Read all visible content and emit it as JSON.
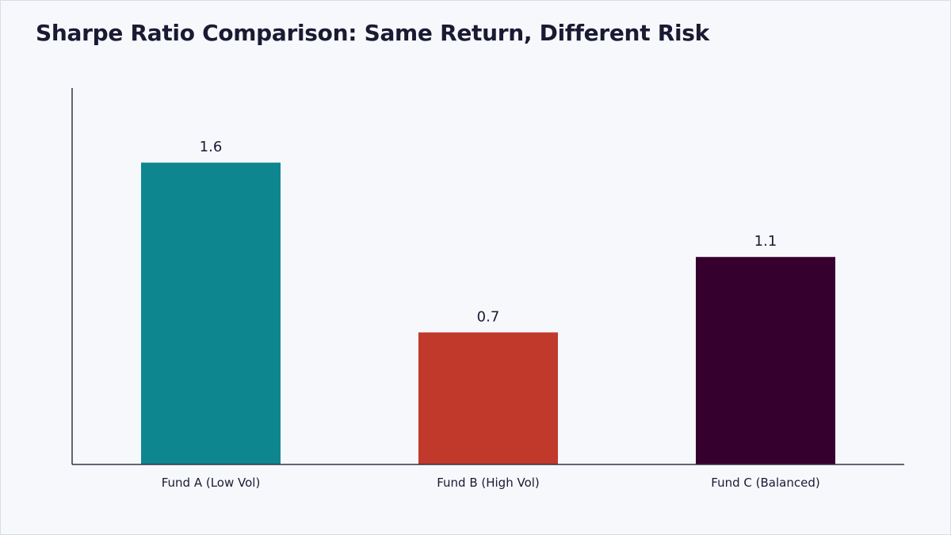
{
  "chart_data": {
    "type": "bar",
    "title": "Sharpe Ratio Comparison: Same Return, Different Risk",
    "xlabel": "",
    "ylabel": "",
    "categories": [
      "Fund A (Low Vol)",
      "Fund B (High Vol)",
      "Fund C (Balanced)"
    ],
    "values": [
      1.6,
      0.7,
      1.1
    ],
    "value_labels": [
      "1.6",
      "0.7",
      "1.1"
    ],
    "colors": [
      "#0e8690",
      "#c0392b",
      "#35002e"
    ],
    "ylim": [
      0,
      2.0
    ],
    "grid": false,
    "legend": "none"
  }
}
